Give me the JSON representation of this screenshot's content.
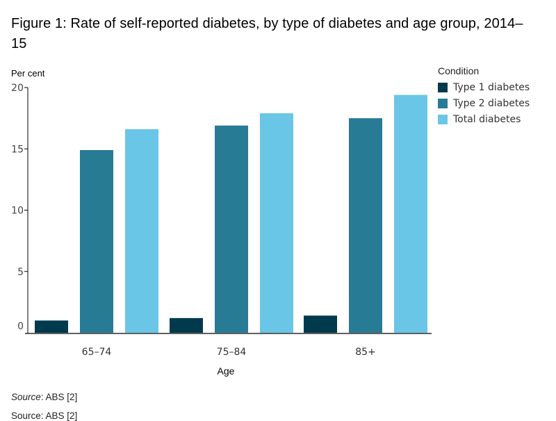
{
  "chart_data": {
    "type": "bar",
    "title": "Figure 1: Rate of self-reported diabetes, by type of diabetes and age group, 2014–15",
    "xlabel": "Age",
    "ylabel": "Per cent",
    "ylim": [
      0,
      20
    ],
    "yticks": [
      0,
      5,
      10,
      15,
      20
    ],
    "grid": false,
    "categories": [
      "65–74",
      "75–84",
      "85+"
    ],
    "legend_title": "Condition",
    "legend_position": "top-right",
    "series": [
      {
        "name": "Type 1 diabetes",
        "color": "#023a4d",
        "values": [
          1.0,
          1.2,
          1.4
        ]
      },
      {
        "name": "Type 2 diabetes",
        "color": "#277b95",
        "values": [
          14.9,
          16.9,
          17.5
        ]
      },
      {
        "name": "Total diabetes",
        "color": "#69c6e6",
        "values": [
          16.6,
          17.9,
          19.4
        ]
      }
    ]
  },
  "source": {
    "label": "Source",
    "text": ": ABS [2]"
  }
}
